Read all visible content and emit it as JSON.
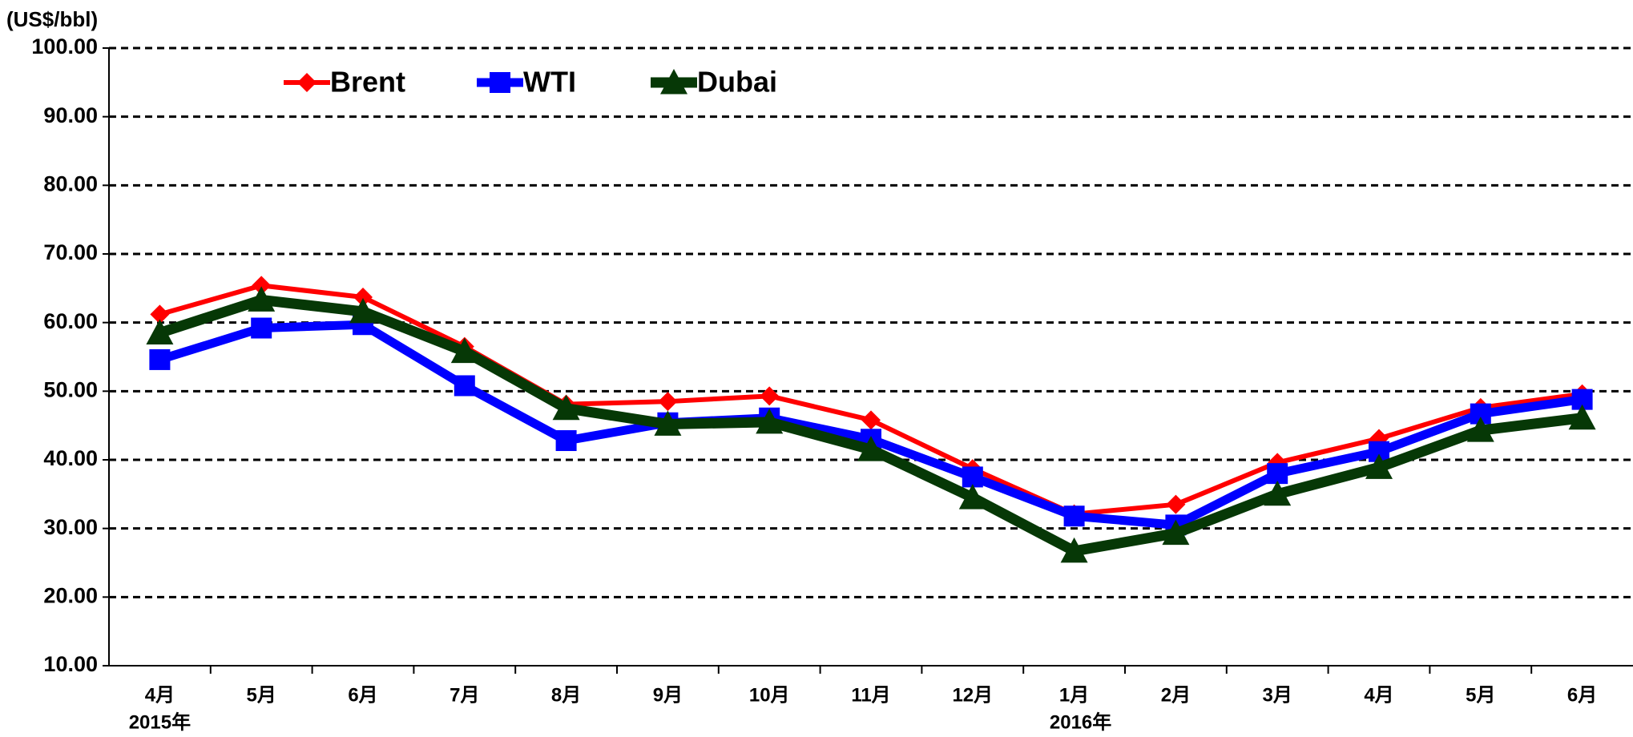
{
  "chart_data": {
    "type": "line",
    "y_axis_label": "(US$/bbl)",
    "categories": [
      "4月",
      "5月",
      "6月",
      "7月",
      "8月",
      "9月",
      "10月",
      "11月",
      "12月",
      "1月",
      "2月",
      "3月",
      "4月",
      "5月",
      "6月"
    ],
    "year_labels": [
      "2015年",
      null,
      null,
      null,
      null,
      null,
      null,
      null,
      null,
      "2016年",
      null,
      null,
      null,
      null,
      null
    ],
    "series": [
      {
        "name": "Brent",
        "color": "#ff0000",
        "marker": "diamond",
        "values": [
          61.2,
          65.4,
          63.7,
          56.5,
          48.1,
          48.5,
          49.3,
          45.8,
          38.7,
          32.1,
          33.5,
          39.6,
          43.1,
          47.6,
          49.6
        ]
      },
      {
        "name": "WTI",
        "color": "#0000ff",
        "marker": "square",
        "values": [
          54.6,
          59.2,
          59.7,
          50.8,
          42.8,
          45.4,
          46.1,
          43.0,
          37.5,
          31.8,
          30.5,
          38.0,
          41.2,
          46.7,
          48.8
        ]
      },
      {
        "name": "Dubai",
        "color": "#063806",
        "marker": "triangle",
        "values": [
          58.5,
          63.3,
          61.6,
          55.8,
          47.5,
          45.2,
          45.5,
          41.5,
          34.5,
          26.7,
          29.3,
          35.0,
          38.9,
          44.3,
          46.1
        ]
      }
    ],
    "ylim": [
      10,
      100
    ],
    "yticks": [
      {
        "value": 10,
        "label": "10.00"
      },
      {
        "value": 20,
        "label": "20.00"
      },
      {
        "value": 30,
        "label": "30.00"
      },
      {
        "value": 40,
        "label": "40.00"
      },
      {
        "value": 50,
        "label": "50.00"
      },
      {
        "value": 60,
        "label": "60.00"
      },
      {
        "value": 70,
        "label": "70.00"
      },
      {
        "value": 80,
        "label": "80.00"
      },
      {
        "value": 90,
        "label": "90.00"
      },
      {
        "value": 100,
        "label": "100.00"
      }
    ],
    "grid": true,
    "legend_position": "top-left"
  }
}
